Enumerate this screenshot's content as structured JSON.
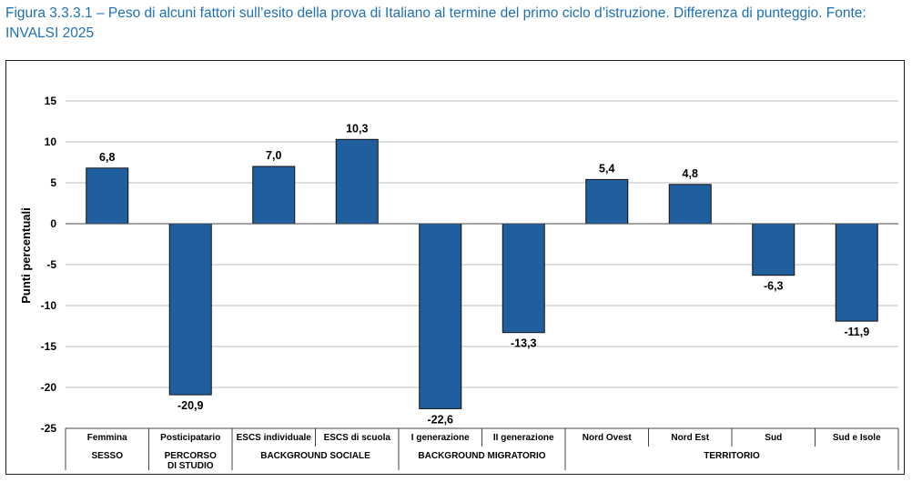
{
  "caption": "Figura 3.3.3.1 – Peso di alcuni fattori sull’esito della prova di Italiano al termine del primo ciclo d’istruzione. Differenza di punteggio. Fonte: INVALSI 2025",
  "colors": {
    "bar": "#1f5f9e",
    "bar_stroke": "#111111",
    "grid": "#bdbdbd",
    "caption": "#1f6fb4"
  },
  "chart_data": {
    "type": "bar",
    "title": "",
    "ylabel": "Punti percentuali",
    "xlabel": "",
    "ylim": [
      -25,
      15
    ],
    "yticks": [
      15,
      10,
      5,
      0,
      -5,
      -10,
      -15,
      -20,
      -25
    ],
    "grid": true,
    "categories": [
      "Femmina",
      "Posticipatario",
      "ESCS individuale",
      "ESCS  di scuola",
      "I generazione",
      "II generazione",
      "Nord Ovest",
      "Nord Est",
      "Sud",
      "Sud e Isole"
    ],
    "values": [
      6.8,
      -20.9,
      7.0,
      10.3,
      -22.6,
      -13.3,
      5.4,
      4.8,
      -6.3,
      -11.9
    ],
    "data_labels": [
      "6,8",
      "-20,9",
      "7,0",
      "10,3",
      "-22,6",
      "-13,3",
      "5,4",
      "4,8",
      "-6,3",
      "-11,9"
    ],
    "groups": [
      {
        "label": "SESSO",
        "span": [
          0,
          0
        ]
      },
      {
        "label": "PERCORSO\nDI STUDIO",
        "span": [
          1,
          1
        ]
      },
      {
        "label": "BACKGROUND SOCIALE",
        "span": [
          2,
          3
        ]
      },
      {
        "label": "BACKGROUND MIGRATORIO",
        "span": [
          4,
          5
        ]
      },
      {
        "label": "TERRITORIO",
        "span": [
          6,
          9
        ]
      }
    ]
  }
}
